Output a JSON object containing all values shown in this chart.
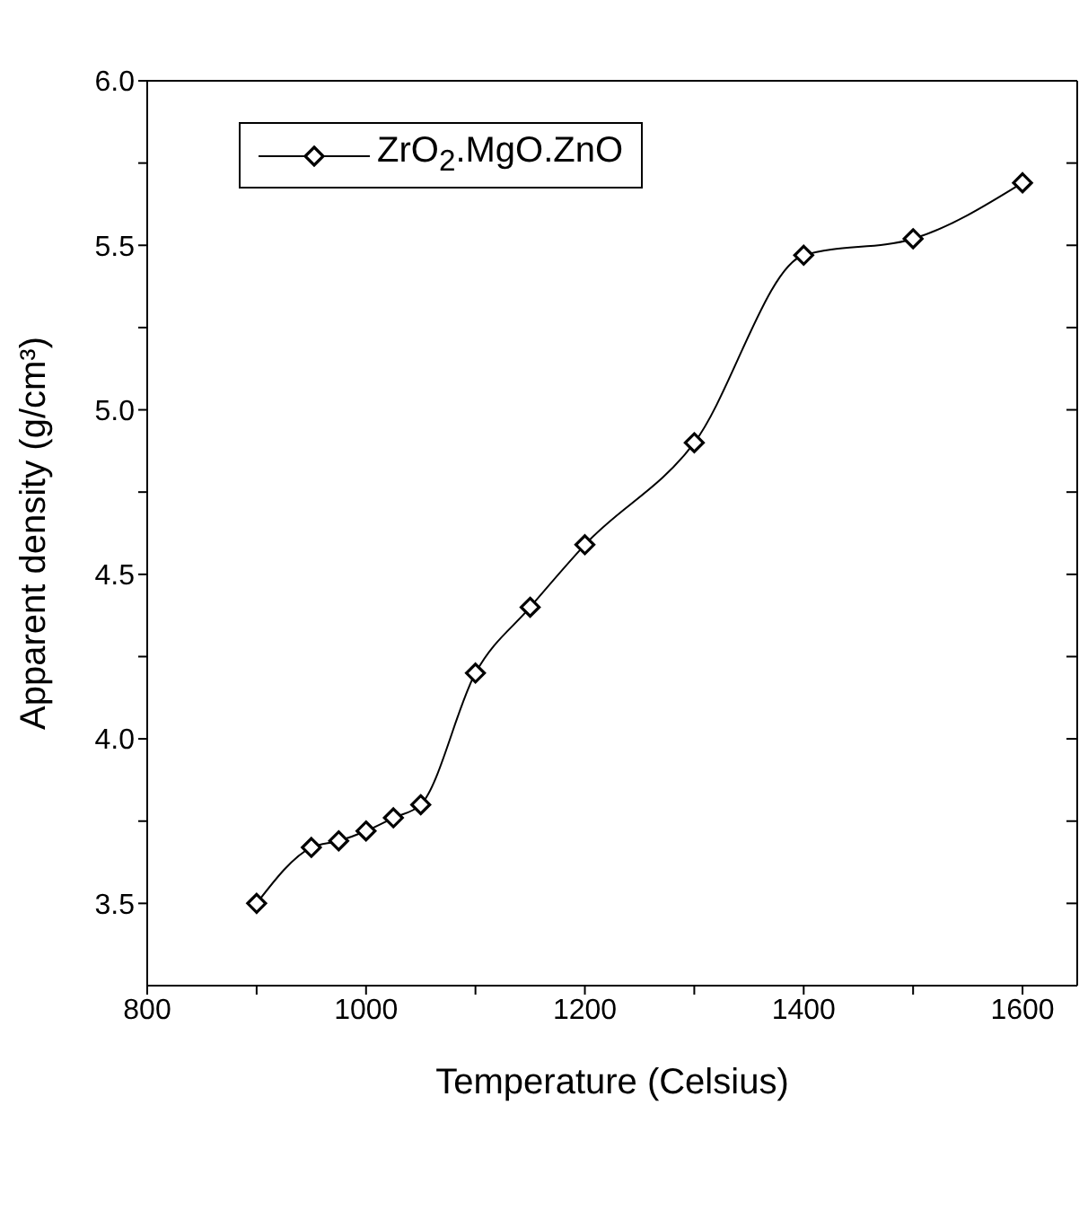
{
  "chart_data": {
    "type": "line",
    "xlabel": "Temperature (Celsius)",
    "ylabel": "Apparent density (g/cm³)",
    "x": [
      900,
      950,
      975,
      1000,
      1025,
      1050,
      1100,
      1150,
      1200,
      1300,
      1400,
      1500,
      1600
    ],
    "series": [
      {
        "name": "ZrO$_{2}$.MgO.ZnO",
        "color": "#000000",
        "values": [
          3.5,
          3.67,
          3.69,
          3.72,
          3.76,
          3.8,
          4.2,
          4.4,
          4.59,
          4.9,
          5.47,
          5.52,
          5.69
        ]
      }
    ],
    "xlim": [
      800,
      1650
    ],
    "xticks": [
      800,
      {
        "value": 900,
        "label": null
      },
      1000,
      {
        "value": 1100,
        "label": null
      },
      1200,
      {
        "value": 1300,
        "label": null
      },
      1400,
      {
        "value": 1500,
        "label": null
      },
      1600
    ],
    "ylim": [
      3.25,
      6.0
    ],
    "yticks": [
      3.5,
      {
        "value": 3.75,
        "label": null
      },
      {
        "value": 4,
        "label": "4.0"
      },
      {
        "value": 4.25,
        "label": null
      },
      4.5,
      {
        "value": 4.75,
        "label": null
      },
      {
        "value": 5,
        "label": "5.0"
      },
      {
        "value": 5.25,
        "label": null
      },
      5.5,
      {
        "value": 5.75,
        "label": null
      },
      {
        "value": 6,
        "label": "6.0"
      }
    ],
    "marker": "diamond",
    "line_style": "solid",
    "legend": "top left",
    "grid": false
  }
}
